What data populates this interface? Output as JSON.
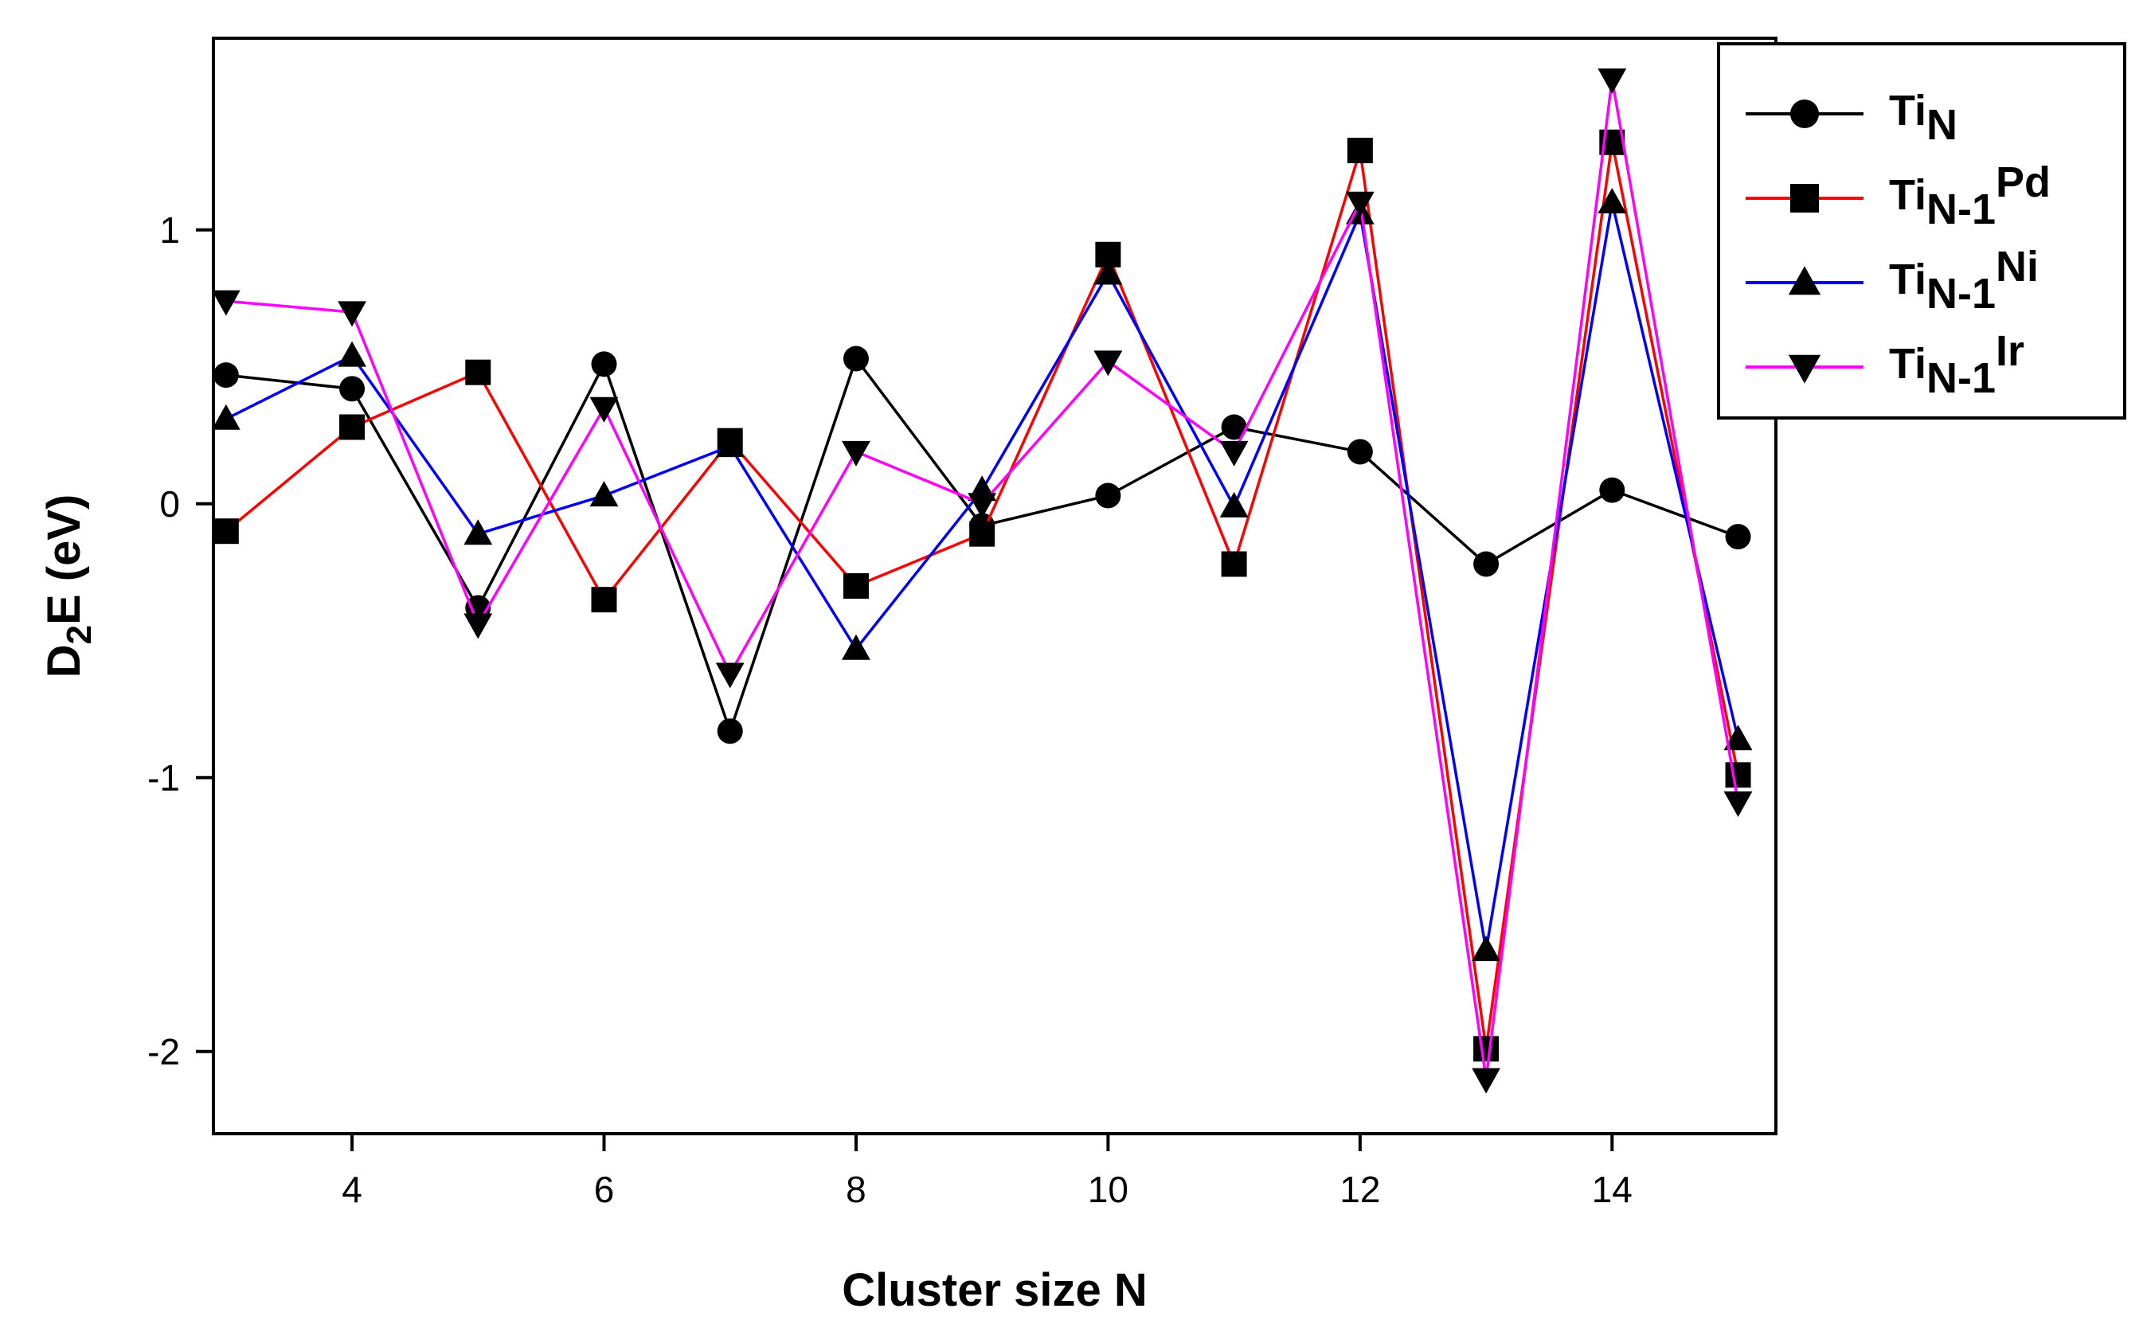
{
  "chart_data": {
    "type": "line",
    "title": "",
    "xlabel": "Cluster size N",
    "ylabel": {
      "main": "D",
      "sub": "2",
      "rest": "E (eV)"
    },
    "xlim": [
      2.9,
      15.3
    ],
    "ylim": [
      -2.3,
      1.7
    ],
    "x": [
      3,
      4,
      5,
      6,
      7,
      8,
      9,
      10,
      11,
      12,
      13,
      14,
      15
    ],
    "x_ticks": [
      4,
      6,
      8,
      10,
      12,
      14
    ],
    "x_tick_labels": [
      "4",
      "6",
      "8",
      "10",
      "12",
      "14"
    ],
    "y_ticks": [
      1,
      0,
      -1,
      -2
    ],
    "y_tick_labels": [
      "1",
      "0",
      "-1",
      "-2"
    ],
    "grid": false,
    "legend_position": "top-right",
    "series": [
      {
        "name": "TiN",
        "label_main": "Ti",
        "label_sub": "N",
        "label_suffix": "",
        "color": "#000000",
        "marker": "circle",
        "values": [
          0.47,
          0.42,
          -0.38,
          0.51,
          -0.83,
          0.53,
          -0.08,
          0.03,
          0.28,
          0.19,
          -0.22,
          0.05,
          -0.12
        ]
      },
      {
        "name": "TiN-1Pd",
        "label_main": "Ti",
        "label_sub": "N-1",
        "label_suffix": "Pd",
        "color": "#ff0000",
        "marker": "square",
        "values": [
          -0.1,
          0.28,
          0.48,
          -0.35,
          0.23,
          -0.3,
          -0.11,
          0.91,
          -0.22,
          1.29,
          -1.99,
          1.32,
          -0.99
        ]
      },
      {
        "name": "TiN-1Ni",
        "label_main": "Ti",
        "label_sub": "N-1",
        "label_suffix": "Ni",
        "color": "#0000ff",
        "marker": "triangle-up",
        "values": [
          0.31,
          0.54,
          -0.11,
          0.03,
          0.21,
          -0.53,
          0.05,
          0.84,
          -0.01,
          1.06,
          -1.63,
          1.1,
          -0.86
        ]
      },
      {
        "name": "TiN-1Ir",
        "label_main": "Ti",
        "label_sub": "N-1",
        "label_suffix": "Ir",
        "color": "#ff00ff",
        "marker": "triangle-down",
        "values": [
          0.74,
          0.7,
          -0.44,
          0.35,
          -0.62,
          0.19,
          0.0,
          0.52,
          0.19,
          1.1,
          -2.1,
          1.55,
          -1.09
        ]
      }
    ]
  }
}
